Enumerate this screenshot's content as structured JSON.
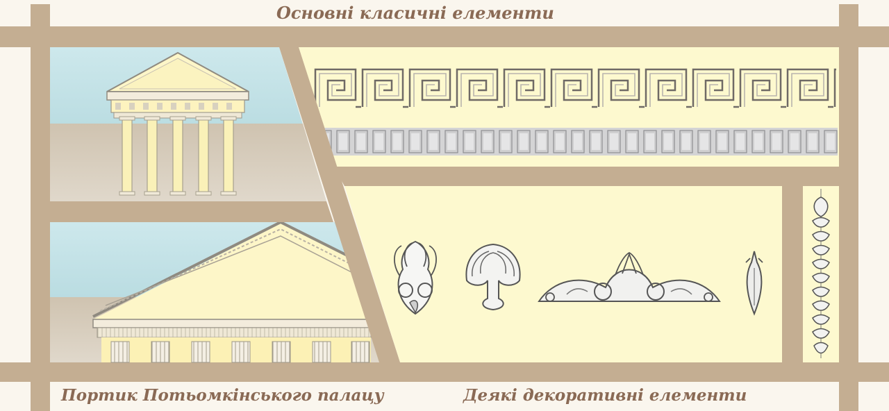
{
  "header": {
    "title": "Основні класичні елементи"
  },
  "captions": {
    "portico": "Портик Потьомкінського палацу",
    "decorative": "Деякі декоративні елементи"
  },
  "colors": {
    "frame": "#c4ae92",
    "background": "#faf6ee",
    "panel": "#fdf9cf",
    "sky": "#bfe0e6",
    "ground": "#d3c9b9",
    "title_text": "#8a6a55"
  },
  "illustrations": [
    {
      "name": "temple-portico",
      "icon": "temple-icon"
    },
    {
      "name": "palace-pediment",
      "icon": "pediment-icon"
    },
    {
      "name": "greek-key-frieze",
      "icon": "meander-icon"
    },
    {
      "name": "dentil-frieze",
      "icon": "dentil-icon"
    },
    {
      "name": "palmette-1",
      "icon": "palmette-icon"
    },
    {
      "name": "palmette-2",
      "icon": "palmette-icon"
    },
    {
      "name": "acroterion-scroll",
      "icon": "scroll-ornament-icon"
    },
    {
      "name": "leaf-finial",
      "icon": "finial-icon"
    },
    {
      "name": "vertical-garland",
      "icon": "garland-icon"
    }
  ]
}
